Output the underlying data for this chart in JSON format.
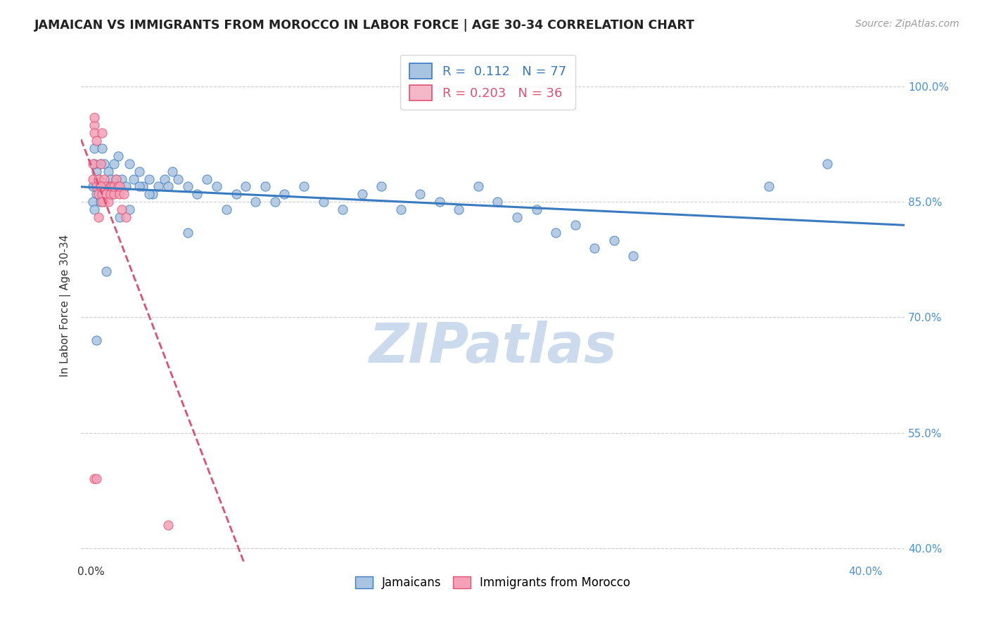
{
  "title": "JAMAICAN VS IMMIGRANTS FROM MOROCCO IN LABOR FORCE | AGE 30-34 CORRELATION CHART",
  "source": "Source: ZipAtlas.com",
  "ylabel": "In Labor Force | Age 30-34",
  "xlim": [
    -0.005,
    0.42
  ],
  "ylim": [
    0.38,
    1.05
  ],
  "y_ticks": [
    0.4,
    0.55,
    0.7,
    0.85,
    1.0
  ],
  "y_tick_labels": [
    "40.0%",
    "55.0%",
    "70.0%",
    "85.0%",
    "100.0%"
  ],
  "x_ticks": [
    0.0,
    0.4
  ],
  "x_tick_labels": [
    "0.0%",
    "40.0%"
  ],
  "blue_R": "0.112",
  "blue_N": "77",
  "pink_R": "0.203",
  "pink_N": "36",
  "blue_color": "#a8c4e0",
  "pink_color": "#f4a0b8",
  "blue_line_color": "#3a7abf",
  "pink_line_color": "#e05070",
  "legend_blue_fill": "#a8c4e0",
  "legend_pink_fill": "#f4b8c8",
  "watermark_color": "#ccdaed",
  "blue_scatter_x": [
    0.002,
    0.002,
    0.003,
    0.003,
    0.004,
    0.005,
    0.006,
    0.007,
    0.007,
    0.008,
    0.009,
    0.01,
    0.011,
    0.012,
    0.012,
    0.013,
    0.014,
    0.015,
    0.016,
    0.018,
    0.02,
    0.022,
    0.025,
    0.027,
    0.03,
    0.032,
    0.035,
    0.038,
    0.04,
    0.042,
    0.045,
    0.05,
    0.055,
    0.06,
    0.065,
    0.07,
    0.075,
    0.08,
    0.085,
    0.09,
    0.095,
    0.1,
    0.11,
    0.12,
    0.13,
    0.14,
    0.15,
    0.16,
    0.17,
    0.18,
    0.19,
    0.2,
    0.21,
    0.22,
    0.23,
    0.24,
    0.25,
    0.26,
    0.27,
    0.28,
    0.001,
    0.001,
    0.002,
    0.002,
    0.003,
    0.004,
    0.005,
    0.006,
    0.008,
    0.01,
    0.015,
    0.02,
    0.025,
    0.03,
    0.05,
    0.35,
    0.38
  ],
  "blue_scatter_y": [
    0.87,
    0.92,
    0.89,
    0.86,
    0.88,
    0.9,
    0.92,
    0.875,
    0.9,
    0.87,
    0.89,
    0.88,
    0.86,
    0.87,
    0.9,
    0.88,
    0.91,
    0.87,
    0.88,
    0.87,
    0.9,
    0.88,
    0.89,
    0.87,
    0.88,
    0.86,
    0.87,
    0.88,
    0.87,
    0.89,
    0.88,
    0.87,
    0.86,
    0.88,
    0.87,
    0.84,
    0.86,
    0.87,
    0.85,
    0.87,
    0.85,
    0.86,
    0.87,
    0.85,
    0.84,
    0.86,
    0.87,
    0.84,
    0.86,
    0.85,
    0.84,
    0.87,
    0.85,
    0.83,
    0.84,
    0.81,
    0.82,
    0.79,
    0.8,
    0.78,
    0.87,
    0.85,
    0.84,
    0.9,
    0.67,
    0.87,
    0.85,
    0.87,
    0.76,
    0.87,
    0.83,
    0.84,
    0.87,
    0.86,
    0.81,
    0.87,
    0.9
  ],
  "pink_scatter_x": [
    0.001,
    0.001,
    0.002,
    0.002,
    0.002,
    0.003,
    0.003,
    0.004,
    0.004,
    0.005,
    0.005,
    0.006,
    0.006,
    0.007,
    0.007,
    0.008,
    0.008,
    0.009,
    0.01,
    0.01,
    0.011,
    0.012,
    0.012,
    0.013,
    0.014,
    0.015,
    0.015,
    0.016,
    0.017,
    0.018,
    0.002,
    0.003,
    0.004,
    0.005,
    0.006,
    0.04
  ],
  "pink_scatter_y": [
    0.9,
    0.88,
    0.95,
    0.96,
    0.94,
    0.93,
    0.87,
    0.86,
    0.88,
    0.87,
    0.9,
    0.86,
    0.94,
    0.88,
    0.85,
    0.87,
    0.86,
    0.85,
    0.87,
    0.86,
    0.87,
    0.86,
    0.87,
    0.88,
    0.87,
    0.86,
    0.87,
    0.84,
    0.86,
    0.83,
    0.49,
    0.49,
    0.83,
    0.87,
    0.85,
    0.43
  ]
}
